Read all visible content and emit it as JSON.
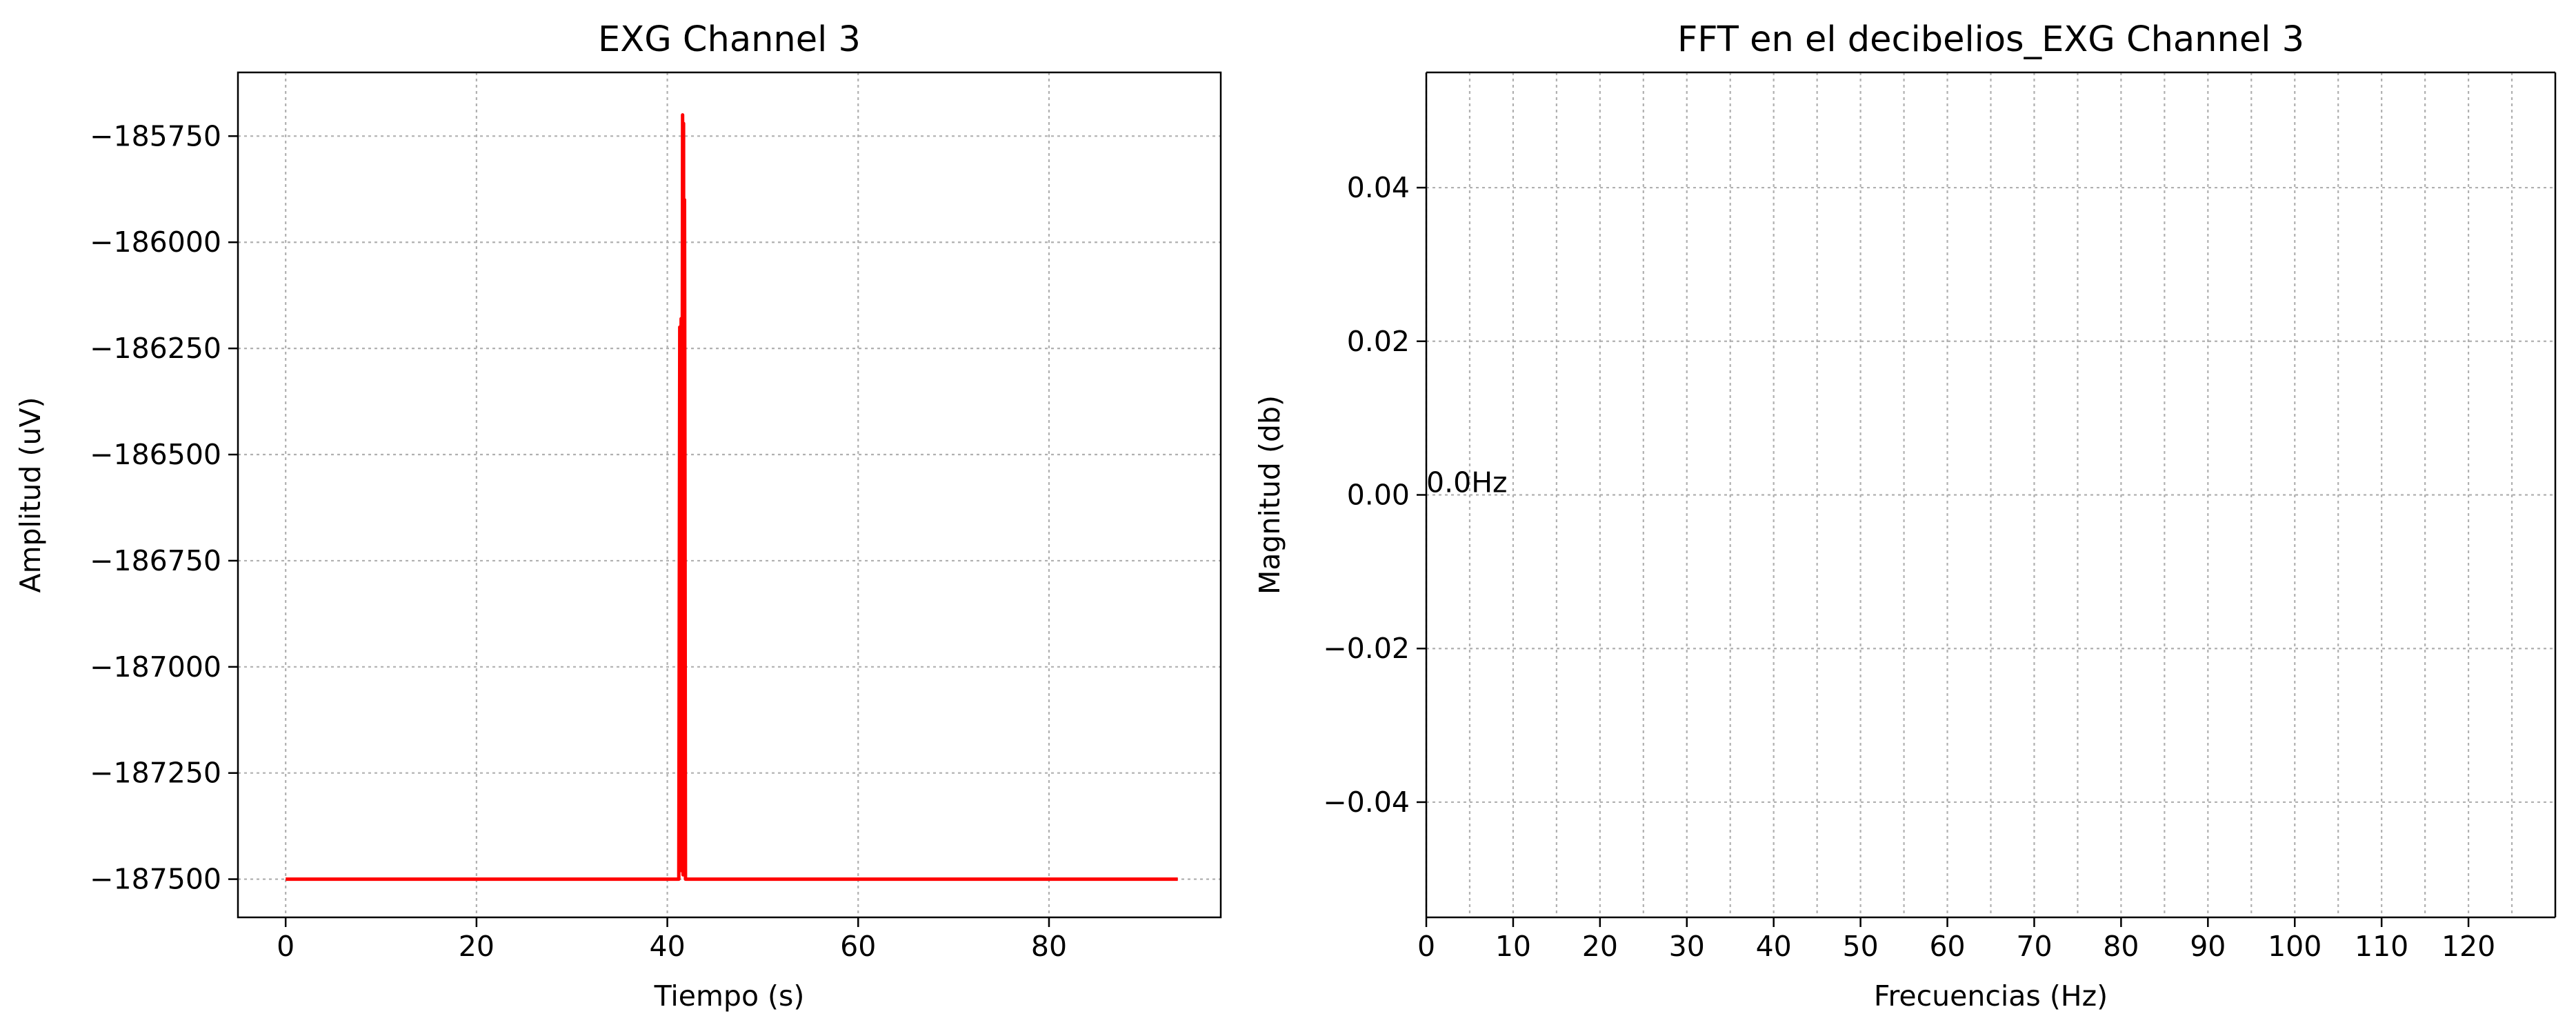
{
  "chart_data": [
    {
      "type": "line",
      "title": "EXG Channel 3",
      "xlabel": "Tiempo (s)",
      "ylabel": "Amplitud (uV)",
      "xlim": [
        -5,
        98
      ],
      "ylim": [
        -187590,
        -185600
      ],
      "x_ticks": [
        0,
        20,
        40,
        60,
        80
      ],
      "x_tick_labels": [
        "0",
        "20",
        "40",
        "60",
        "80"
      ],
      "y_ticks": [
        -185750,
        -186000,
        -186250,
        -186500,
        -186750,
        -187000,
        -187250,
        -187500
      ],
      "y_tick_labels": [
        "−185750",
        "−186000",
        "−186250",
        "−186500",
        "−186750",
        "−187000",
        "−187250",
        "−187500"
      ],
      "grid": true,
      "series": [
        {
          "color": "#ff0000",
          "x": [
            0,
            41.2,
            41.3,
            41.35,
            41.45,
            41.5,
            41.6,
            41.65,
            41.7,
            41.75,
            41.8,
            41.85,
            41.9,
            42.0,
            93.5
          ],
          "y": [
            -187500,
            -187500,
            -186200,
            -187450,
            -186180,
            -187480,
            -185700,
            -187490,
            -185720,
            -187480,
            -185900,
            -186600,
            -187500,
            -187500,
            -187500
          ]
        }
      ]
    },
    {
      "type": "line",
      "title": "FFT en el decibelios_EXG Channel 3",
      "xlabel": "Frecuencias (Hz)",
      "ylabel": "Magnitud (db)",
      "xlim": [
        0,
        130
      ],
      "ylim": [
        -0.055,
        0.055
      ],
      "x_ticks": [
        0,
        10,
        20,
        30,
        40,
        50,
        60,
        70,
        80,
        90,
        100,
        110,
        120
      ],
      "x_tick_labels": [
        "0",
        "10",
        "20",
        "30",
        "40",
        "50",
        "60",
        "70",
        "80",
        "90",
        "100",
        "110",
        "120"
      ],
      "x_minor_ticks": [
        5,
        15,
        25,
        35,
        45,
        55,
        65,
        75,
        85,
        95,
        105,
        115,
        125
      ],
      "y_ticks": [
        0.04,
        0.02,
        0.0,
        -0.02,
        -0.04
      ],
      "y_tick_labels": [
        "0.04",
        "0.02",
        "0.00",
        "−0.02",
        "−0.04"
      ],
      "grid": true,
      "annotations": [
        {
          "text": "0.0Hz",
          "x": 0,
          "y": 0.0
        }
      ],
      "series": []
    }
  ]
}
